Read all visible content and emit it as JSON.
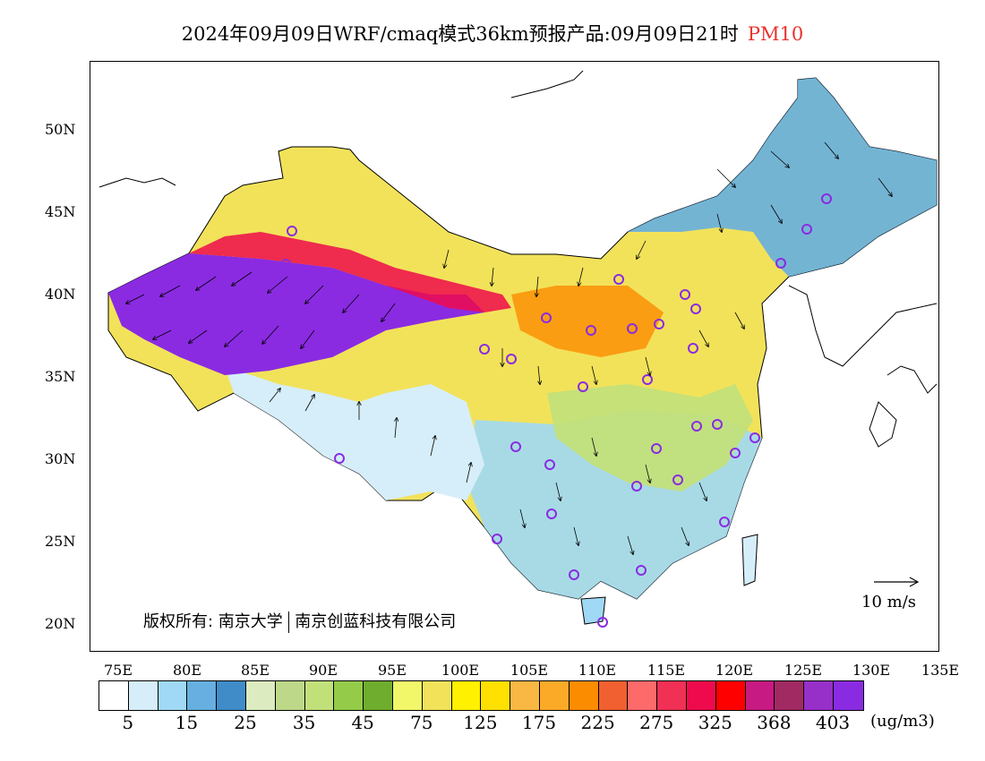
{
  "title": {
    "main": "2024年09月09日WRF/cmaq模式36km预报产品:09月09日21时",
    "product": "PM10",
    "product_color": "#e8332f"
  },
  "axes": {
    "y_labels": [
      "50N",
      "45N",
      "40N",
      "35N",
      "30N",
      "25N",
      "20N"
    ],
    "x_labels": [
      "75E",
      "80E",
      "85E",
      "90E",
      "95E",
      "100E",
      "105E",
      "110E",
      "115E",
      "120E",
      "125E",
      "130E",
      "135E"
    ]
  },
  "copyright": {
    "text_a": "版权所有: 南京大学",
    "text_b": "南京创蓝科技有限公司"
  },
  "wind_reference": {
    "label": "10 m/s"
  },
  "colorbar": {
    "colors": [
      "#ffffff",
      "#d6eef9",
      "#a0d9f5",
      "#66afe0",
      "#3f8cc8",
      "#dcecc0",
      "#bcd888",
      "#c2e07a",
      "#94cc4a",
      "#6fad2e",
      "#f2f76a",
      "#f2e25a",
      "#fff100",
      "#ffe000",
      "#f8b843",
      "#fbaa28",
      "#fb8c00",
      "#f06030",
      "#fd6a6a",
      "#f03054",
      "#ee0a4c",
      "#ff0000",
      "#c71a82",
      "#a12a62",
      "#9630c8",
      "#8a2be2"
    ],
    "labels": [
      "5",
      "15",
      "25",
      "35",
      "45",
      "75",
      "125",
      "175",
      "225",
      "275",
      "325",
      "368",
      "403"
    ],
    "unit": "(ug/m3)"
  },
  "map": {
    "land_color": "#ffffff",
    "outline_color": "#000000",
    "station_marker_color": "#8a2be2",
    "icons": [
      "coastline",
      "province-boundaries",
      "wind-vectors",
      "station-circles"
    ]
  }
}
